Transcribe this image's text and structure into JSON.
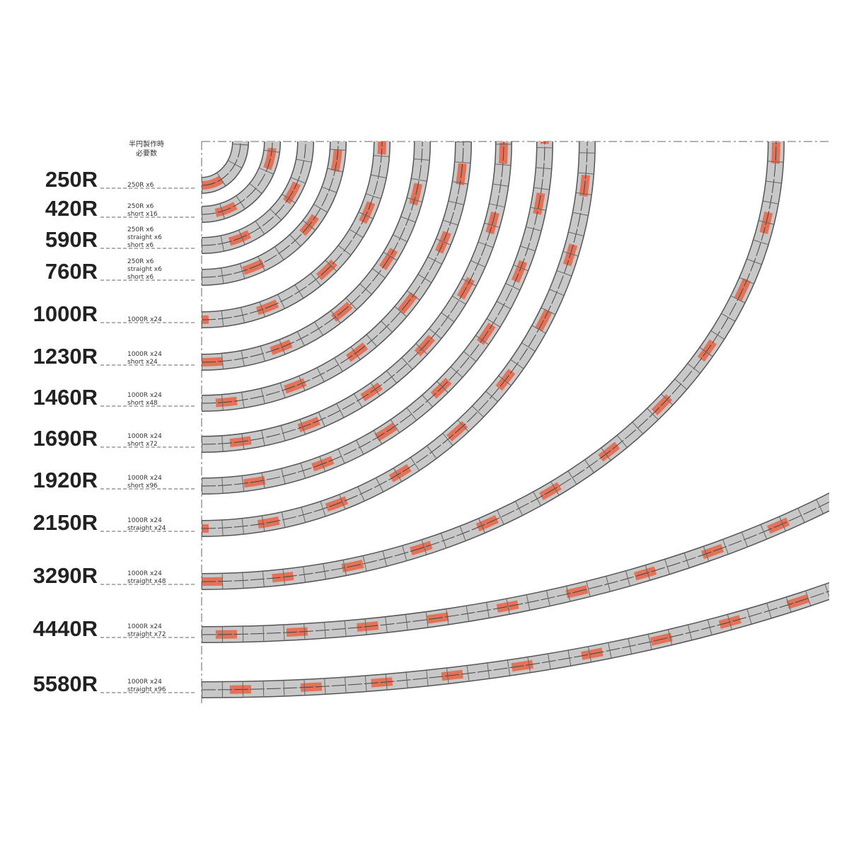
{
  "header": [
    "半円製作時",
    "必要数"
  ],
  "rows": [
    {
      "radius": "250R",
      "parts": [
        "250R x6"
      ]
    },
    {
      "radius": "420R",
      "parts": [
        "250R x6",
        "short x16"
      ]
    },
    {
      "radius": "590R",
      "parts": [
        "250R x6",
        "straight x6",
        "short x6"
      ]
    },
    {
      "radius": "760R",
      "parts": [
        "250R x6",
        "straight x6",
        "short x6"
      ]
    },
    {
      "radius": "1000R",
      "parts": [
        "1000R x24"
      ]
    },
    {
      "radius": "1230R",
      "parts": [
        "1000R x24",
        "short x24"
      ]
    },
    {
      "radius": "1460R",
      "parts": [
        "1000R x24",
        "short x48"
      ]
    },
    {
      "radius": "1690R",
      "parts": [
        "1000R x24",
        "short x72"
      ]
    },
    {
      "radius": "1920R",
      "parts": [
        "1000R x24",
        "short x96"
      ]
    },
    {
      "radius": "2150R",
      "parts": [
        "1000R x24",
        "straight x24"
      ]
    },
    {
      "radius": "3290R",
      "parts": [
        "1000R x24",
        "straight x48"
      ]
    },
    {
      "radius": "4440R",
      "parts": [
        "1000R x24",
        "straight x72"
      ]
    },
    {
      "radius": "5580R",
      "parts": [
        "1000R x24",
        "straight x96"
      ]
    }
  ]
}
